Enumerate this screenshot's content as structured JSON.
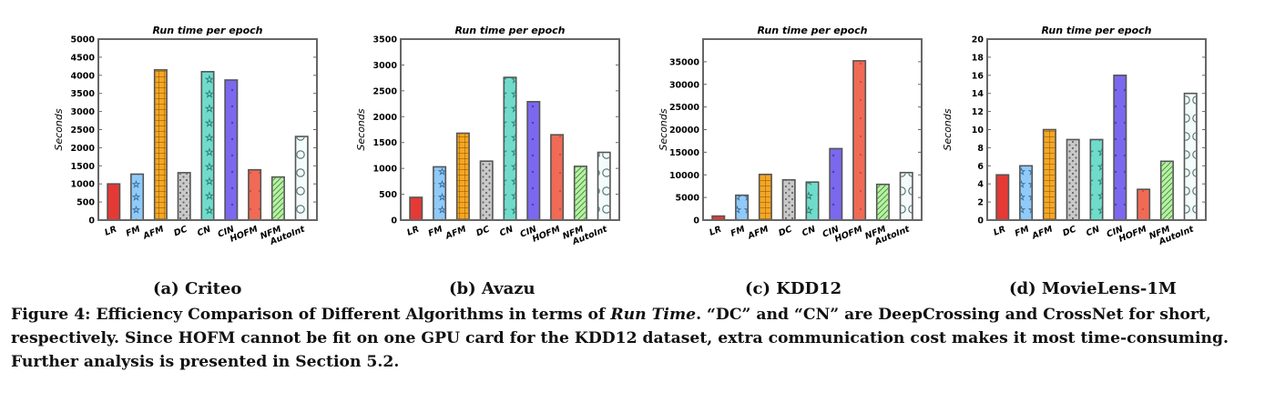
{
  "colors": {
    "LR": "#e53935",
    "FM": "#90caf9",
    "AFM": "#f6a623",
    "DC": "#c9c9c9",
    "CN": "#6fdccb",
    "CIN": "#7b68ee",
    "HOFM": "#f06a55",
    "NFM": "#b9f0a7",
    "AutoInt": "#f4fbfb",
    "bar_border": "#555555",
    "axis": "#666666"
  },
  "chart_data": [
    {
      "type": "bar",
      "title": "Run time per epoch",
      "ylabel": "Seconds",
      "subcaption": "(a) Criteo",
      "categories": [
        "LR",
        "FM",
        "AFM",
        "DC",
        "CN",
        "CIN",
        "HOFM",
        "NFM",
        "AutoInt"
      ],
      "values": [
        1000,
        1270,
        4150,
        1310,
        4100,
        3870,
        1390,
        1190,
        2310
      ],
      "ylim": [
        0,
        5000
      ],
      "yticks": [
        0,
        500,
        1000,
        1500,
        2000,
        2500,
        3000,
        3500,
        4000,
        4500,
        5000
      ]
    },
    {
      "type": "bar",
      "title": "Run time per epoch",
      "ylabel": "Seconds",
      "subcaption": "(b) Avazu",
      "categories": [
        "LR",
        "FM",
        "AFM",
        "DC",
        "CN",
        "CIN",
        "HOFM",
        "NFM",
        "AutoInt"
      ],
      "values": [
        440,
        1030,
        1680,
        1140,
        2760,
        2290,
        1650,
        1040,
        1310
      ],
      "ylim": [
        0,
        3500
      ],
      "yticks": [
        0,
        500,
        1000,
        1500,
        2000,
        2500,
        3000,
        3500
      ]
    },
    {
      "type": "bar",
      "title": "Run time per epoch",
      "ylabel": "Seconds",
      "subcaption": "(c) KDD12",
      "categories": [
        "LR",
        "FM",
        "AFM",
        "DC",
        "CN",
        "CIN",
        "HOFM",
        "NFM",
        "AutoInt"
      ],
      "values": [
        900,
        5500,
        10100,
        8900,
        8400,
        15800,
        35200,
        7900,
        10500
      ],
      "ylim": [
        0,
        40000
      ],
      "yticks": [
        0,
        5000,
        10000,
        15000,
        20000,
        25000,
        30000,
        35000
      ]
    },
    {
      "type": "bar",
      "title": "Run time per epoch",
      "ylabel": "Seconds",
      "subcaption": "(d) MovieLens-1M",
      "categories": [
        "LR",
        "FM",
        "AFM",
        "DC",
        "CN",
        "CIN",
        "HOFM",
        "NFM",
        "AutoInt"
      ],
      "values": [
        5,
        6,
        10,
        8.9,
        8.9,
        16,
        3.4,
        6.5,
        14
      ],
      "ylim": [
        0,
        20
      ],
      "yticks": [
        0,
        2,
        4,
        6,
        8,
        10,
        12,
        14,
        16,
        18,
        20
      ]
    }
  ],
  "caption": {
    "part1": "Figure 4: Efficiency Comparison of Different Algorithms in terms of ",
    "italic": "Run Time",
    "part2": ". “DC” and “CN” are DeepCrossing and CrossNet for short, respectively. Since HOFM cannot be fit on one GPU card for the KDD12 dataset, extra communication cost makes it most time-consuming. Further analysis is presented in Section 5.2."
  }
}
